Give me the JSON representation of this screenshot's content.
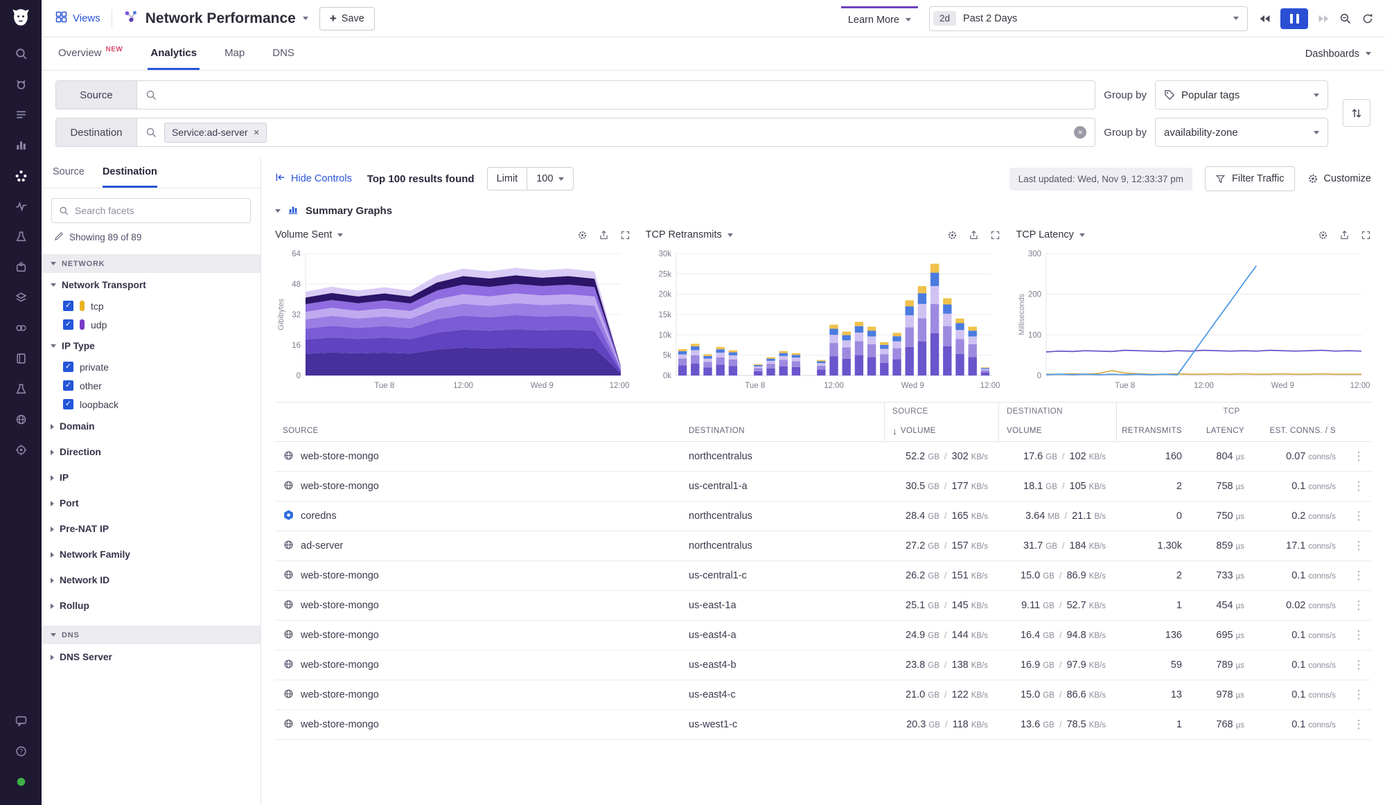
{
  "colors": {
    "accent_blue": "#2b55d8",
    "pause_blue": "#2b4fd4",
    "learn_more_purple": "#6f42c1",
    "rail_bg": "#1f1833",
    "new_badge": "#d44d6e",
    "checkbox_blue": "#2456d8",
    "tcp_yellow": "#e8b021",
    "udp_purple": "#7a3bc8",
    "status_green": "#3bb143"
  },
  "rail": {
    "items": [
      {
        "name": "search-icon",
        "kind": "search",
        "active": false
      },
      {
        "name": "watchdog-icon",
        "kind": "dog",
        "active": false
      },
      {
        "name": "events-icon",
        "kind": "list",
        "active": false
      },
      {
        "name": "dashboards-icon",
        "kind": "chart",
        "active": false
      },
      {
        "name": "network-icon",
        "kind": "network",
        "active": true
      },
      {
        "name": "apm-icon",
        "kind": "pulse",
        "active": false
      },
      {
        "name": "logs-icon",
        "kind": "flask",
        "active": false
      },
      {
        "name": "integrations-icon",
        "kind": "puzzle",
        "active": false
      },
      {
        "name": "infrastructure-icon",
        "kind": "stack",
        "active": false
      },
      {
        "name": "synthetics-icon",
        "kind": "link",
        "active": false
      },
      {
        "name": "notebooks-icon",
        "kind": "book",
        "active": false
      },
      {
        "name": "ci-icon",
        "kind": "flask",
        "active": false
      },
      {
        "name": "security-icon",
        "kind": "globe2",
        "active": false
      },
      {
        "name": "compliance-icon",
        "kind": "target",
        "active": false
      }
    ],
    "bottom": [
      {
        "name": "chat-icon",
        "kind": "chat"
      },
      {
        "name": "help-icon",
        "kind": "help"
      },
      {
        "name": "status-icon",
        "kind": "dot"
      }
    ]
  },
  "header": {
    "views_label": "Views",
    "title": "Network Performance",
    "save_label": "Save",
    "learn_more_label": "Learn More",
    "time_range_badge": "2d",
    "time_range_label": "Past 2 Days"
  },
  "tabs": {
    "items": [
      {
        "label": "Overview",
        "badge": "NEW",
        "active": false
      },
      {
        "label": "Analytics",
        "badge": "",
        "active": true
      },
      {
        "label": "Map",
        "badge": "",
        "active": false
      },
      {
        "label": "DNS",
        "badge": "",
        "active": false
      }
    ],
    "right_label": "Dashboards"
  },
  "query": {
    "rows": [
      {
        "label": "Source",
        "chips": [],
        "group_by_label": "Group by",
        "group_by_value": "Popular tags"
      },
      {
        "label": "Destination",
        "chips": [
          "Service:ad-server"
        ],
        "group_by_label": "Group by",
        "group_by_value": "availability-zone"
      }
    ]
  },
  "facets": {
    "tabs": [
      "Source",
      "Destination"
    ],
    "active_tab": "Destination",
    "search_placeholder": "Search facets",
    "showing": "Showing 89 of 89",
    "sections": [
      {
        "title": "NETWORK",
        "groups": [
          {
            "name": "Network Transport",
            "expanded": true,
            "items": [
              {
                "label": "tcp",
                "checked": true,
                "color": "#e8b021"
              },
              {
                "label": "udp",
                "checked": true,
                "color": "#7a3bc8"
              }
            ]
          },
          {
            "name": "IP Type",
            "expanded": true,
            "items": [
              {
                "label": "private",
                "checked": true
              },
              {
                "label": "other",
                "checked": true
              },
              {
                "label": "loopback",
                "checked": true
              }
            ]
          },
          {
            "name": "Domain",
            "expanded": false
          },
          {
            "name": "Direction",
            "expanded": false
          },
          {
            "name": "IP",
            "expanded": false
          },
          {
            "name": "Port",
            "expanded": false
          },
          {
            "name": "Pre-NAT IP",
            "expanded": false
          },
          {
            "name": "Network Family",
            "expanded": false
          },
          {
            "name": "Network ID",
            "expanded": false
          },
          {
            "name": "Rollup",
            "expanded": false
          }
        ]
      },
      {
        "title": "DNS",
        "groups": [
          {
            "name": "DNS Server",
            "expanded": false
          }
        ]
      }
    ]
  },
  "controls": {
    "hide_controls_label": "Hide Controls",
    "results_label": "Top 100 results found",
    "limit_label": "Limit",
    "limit_value": "100",
    "last_updated": "Last updated: Wed, Nov 9, 12:33:37 pm",
    "filter_label": "Filter Traffic",
    "customize_label": "Customize"
  },
  "summary": {
    "title": "Summary Graphs"
  },
  "chart_data": [
    {
      "type": "area",
      "title": "Volume Sent",
      "ylabel": "Gibibytes",
      "ylim": [
        0,
        64
      ],
      "yticks_v": [
        0,
        16,
        32,
        48,
        64
      ],
      "yticks_l": [
        "0",
        "16",
        "32",
        "48",
        "64"
      ],
      "xticks": [
        "Tue 8",
        "12:00",
        "Wed 9",
        "12:00"
      ],
      "series_colors": [
        "#45309c",
        "#5f43c0",
        "#7b5cd6",
        "#9a7ee4",
        "#bfaaf0",
        "#8f6ce0",
        "#2c1468",
        "#d8ccf6"
      ],
      "series": [
        [
          11.4,
          12.1,
          11.6,
          12.0,
          11.5,
          13.6,
          14.6,
          14.2,
          14.7,
          14.3,
          14.6,
          14.2,
          1.3
        ],
        [
          7.5,
          7.9,
          7.6,
          7.9,
          7.6,
          8.9,
          9.5,
          9.3,
          9.6,
          9.4,
          9.5,
          9.3,
          0.9
        ],
        [
          5.7,
          6.1,
          5.8,
          6.0,
          5.8,
          6.9,
          7.3,
          7.1,
          7.4,
          7.2,
          7.3,
          7.1,
          0.7
        ],
        [
          4.8,
          5.2,
          4.9,
          5.1,
          4.9,
          5.8,
          6.2,
          6.0,
          6.3,
          6.1,
          6.2,
          6.0,
          0.6
        ],
        [
          4.0,
          4.2,
          4.0,
          4.2,
          4.0,
          4.7,
          5.1,
          4.9,
          5.1,
          5.0,
          5.0,
          4.9,
          0.5
        ],
        [
          4.0,
          4.1,
          4.0,
          4.2,
          4.0,
          4.7,
          5.0,
          5.0,
          5.0,
          4.9,
          5.1,
          4.9,
          0.5
        ],
        [
          3.5,
          3.7,
          3.6,
          3.7,
          3.6,
          4.2,
          4.5,
          4.4,
          4.5,
          4.4,
          4.5,
          4.4,
          0.4
        ],
        [
          3.1,
          3.3,
          3.1,
          3.2,
          3.1,
          3.7,
          3.9,
          3.8,
          3.9,
          3.9,
          3.9,
          3.8,
          0.4
        ]
      ]
    },
    {
      "type": "stacked_bar",
      "title": "TCP Retransmits",
      "ylabel": "",
      "ylim": [
        0,
        30000
      ],
      "yticks_v": [
        0,
        5000,
        10000,
        15000,
        20000,
        25000,
        30000
      ],
      "yticks_l": [
        "0k",
        "5k",
        "10k",
        "15k",
        "20k",
        "25k",
        "30k"
      ],
      "xticks": [
        "Tue 8",
        "12:00",
        "Wed 9",
        "12:00"
      ],
      "values": [
        6500,
        7800,
        5200,
        7000,
        6200,
        0,
        2800,
        4500,
        6000,
        5500,
        0,
        3800,
        12500,
        10800,
        13200,
        12000,
        8200,
        10500,
        18500,
        22000,
        27500,
        19000,
        14000,
        12000,
        2000
      ],
      "segment_colors": [
        "#6a55cc",
        "#9d8ae0",
        "#cfc2f2",
        "#4a7be0",
        "#f0c14b"
      ],
      "segment_fractions": [
        0.38,
        0.26,
        0.16,
        0.12,
        0.08
      ]
    },
    {
      "type": "line",
      "title": "TCP Latency",
      "ylabel": "Milliseconds",
      "ylim": [
        0,
        300
      ],
      "yticks_v": [
        0,
        100,
        200,
        300
      ],
      "yticks_l": [
        "0",
        "100",
        "200",
        "300"
      ],
      "xticks": [
        "Tue 8",
        "12:00",
        "Wed 9",
        "12:00"
      ],
      "series": [
        {
          "name": "latency-purple",
          "color": "#6a4fc8",
          "values": [
            58,
            60,
            59,
            61,
            60,
            59,
            62,
            61,
            60,
            59,
            61,
            60,
            62,
            61,
            60,
            61,
            60,
            62,
            61,
            60,
            61,
            62,
            60,
            61,
            60
          ]
        },
        {
          "name": "latency-yellow",
          "color": "#d4a942",
          "values": [
            3,
            3,
            4,
            3,
            5,
            12,
            6,
            4,
            3,
            3,
            4,
            3,
            3,
            4,
            3,
            4,
            3,
            3,
            4,
            3,
            3,
            4,
            3,
            3,
            3
          ]
        },
        {
          "name": "latency-blue",
          "color": "#4a97e4",
          "values": [
            2,
            3,
            2,
            3,
            2,
            3,
            2,
            3,
            2,
            3,
            2,
            47,
            92,
            137,
            181,
            226,
            270,
            null,
            null,
            null,
            null,
            null,
            null,
            null,
            null
          ]
        }
      ]
    }
  ],
  "table": {
    "group_headers": [
      "SOURCE",
      "DESTINATION",
      "TCP"
    ],
    "columns": [
      "SOURCE",
      "DESTINATION",
      "VOLUME",
      "VOLUME",
      "RETRANSMITS",
      "LATENCY",
      "EST. CONNS. / S"
    ],
    "sort_arrow": "↓",
    "rows": [
      {
        "source": "web-store-mongo",
        "icon": "globe",
        "destination": "northcentralus",
        "src_vol": "52.2",
        "src_vol_u": "GB",
        "src_rate": "302",
        "src_rate_u": "KB/s",
        "dst_vol": "17.6",
        "dst_vol_u": "GB",
        "dst_rate": "102",
        "dst_rate_u": "KB/s",
        "retransmits": "160",
        "latency": "804",
        "latency_u": "µs",
        "conns": "0.07",
        "conns_u": "conns/s"
      },
      {
        "source": "web-store-mongo",
        "icon": "globe",
        "destination": "us-central1-a",
        "src_vol": "30.5",
        "src_vol_u": "GB",
        "src_rate": "177",
        "src_rate_u": "KB/s",
        "dst_vol": "18.1",
        "dst_vol_u": "GB",
        "dst_rate": "105",
        "dst_rate_u": "KB/s",
        "retransmits": "2",
        "latency": "758",
        "latency_u": "µs",
        "conns": "0.1",
        "conns_u": "conns/s"
      },
      {
        "source": "coredns",
        "icon": "coredns",
        "destination": "northcentralus",
        "src_vol": "28.4",
        "src_vol_u": "GB",
        "src_rate": "165",
        "src_rate_u": "KB/s",
        "dst_vol": "3.64",
        "dst_vol_u": "MB",
        "dst_rate": "21.1",
        "dst_rate_u": "B/s",
        "retransmits": "0",
        "latency": "750",
        "latency_u": "µs",
        "conns": "0.2",
        "conns_u": "conns/s"
      },
      {
        "source": "ad-server",
        "icon": "globe",
        "destination": "northcentralus",
        "src_vol": "27.2",
        "src_vol_u": "GB",
        "src_rate": "157",
        "src_rate_u": "KB/s",
        "dst_vol": "31.7",
        "dst_vol_u": "GB",
        "dst_rate": "184",
        "dst_rate_u": "KB/s",
        "retransmits": "1.30k",
        "latency": "859",
        "latency_u": "µs",
        "conns": "17.1",
        "conns_u": "conns/s"
      },
      {
        "source": "web-store-mongo",
        "icon": "globe",
        "destination": "us-central1-c",
        "src_vol": "26.2",
        "src_vol_u": "GB",
        "src_rate": "151",
        "src_rate_u": "KB/s",
        "dst_vol": "15.0",
        "dst_vol_u": "GB",
        "dst_rate": "86.9",
        "dst_rate_u": "KB/s",
        "retransmits": "2",
        "latency": "733",
        "latency_u": "µs",
        "conns": "0.1",
        "conns_u": "conns/s"
      },
      {
        "source": "web-store-mongo",
        "icon": "globe",
        "destination": "us-east-1a",
        "src_vol": "25.1",
        "src_vol_u": "GB",
        "src_rate": "145",
        "src_rate_u": "KB/s",
        "dst_vol": "9.11",
        "dst_vol_u": "GB",
        "dst_rate": "52.7",
        "dst_rate_u": "KB/s",
        "retransmits": "1",
        "latency": "454",
        "latency_u": "µs",
        "conns": "0.02",
        "conns_u": "conns/s"
      },
      {
        "source": "web-store-mongo",
        "icon": "globe",
        "destination": "us-east4-a",
        "src_vol": "24.9",
        "src_vol_u": "GB",
        "src_rate": "144",
        "src_rate_u": "KB/s",
        "dst_vol": "16.4",
        "dst_vol_u": "GB",
        "dst_rate": "94.8",
        "dst_rate_u": "KB/s",
        "retransmits": "136",
        "latency": "695",
        "latency_u": "µs",
        "conns": "0.1",
        "conns_u": "conns/s"
      },
      {
        "source": "web-store-mongo",
        "icon": "globe",
        "destination": "us-east4-b",
        "src_vol": "23.8",
        "src_vol_u": "GB",
        "src_rate": "138",
        "src_rate_u": "KB/s",
        "dst_vol": "16.9",
        "dst_vol_u": "GB",
        "dst_rate": "97.9",
        "dst_rate_u": "KB/s",
        "retransmits": "59",
        "latency": "789",
        "latency_u": "µs",
        "conns": "0.1",
        "conns_u": "conns/s"
      },
      {
        "source": "web-store-mongo",
        "icon": "globe",
        "destination": "us-east4-c",
        "src_vol": "21.0",
        "src_vol_u": "GB",
        "src_rate": "122",
        "src_rate_u": "KB/s",
        "dst_vol": "15.0",
        "dst_vol_u": "GB",
        "dst_rate": "86.6",
        "dst_rate_u": "KB/s",
        "retransmits": "13",
        "latency": "978",
        "latency_u": "µs",
        "conns": "0.1",
        "conns_u": "conns/s"
      },
      {
        "source": "web-store-mongo",
        "icon": "globe",
        "destination": "us-west1-c",
        "src_vol": "20.3",
        "src_vol_u": "GB",
        "src_rate": "118",
        "src_rate_u": "KB/s",
        "dst_vol": "13.6",
        "dst_vol_u": "GB",
        "dst_rate": "78.5",
        "dst_rate_u": "KB/s",
        "retransmits": "1",
        "latency": "768",
        "latency_u": "µs",
        "conns": "0.1",
        "conns_u": "conns/s"
      }
    ]
  }
}
